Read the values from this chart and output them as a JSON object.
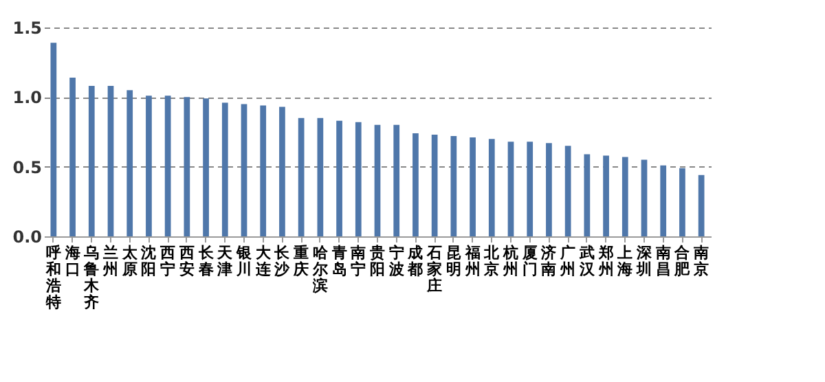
{
  "chart_data": {
    "type": "bar",
    "categories": [
      "呼和浩特",
      "海口",
      "乌鲁木齐",
      "兰州",
      "太原",
      "沈阳",
      "西宁",
      "西安",
      "长春",
      "天津",
      "银川",
      "大连",
      "长沙",
      "重庆",
      "哈尔滨",
      "青岛",
      "南宁",
      "贵阳",
      "宁波",
      "成都",
      "石家庄",
      "昆明",
      "福州",
      "北京",
      "杭州",
      "厦门",
      "济南",
      "广州",
      "武汉",
      "郑州",
      "上海",
      "深圳",
      "南昌",
      "合肥",
      "南京"
    ],
    "values": [
      1.39,
      1.14,
      1.08,
      1.08,
      1.05,
      1.01,
      1.01,
      1.0,
      0.99,
      0.96,
      0.95,
      0.94,
      0.93,
      0.85,
      0.85,
      0.83,
      0.82,
      0.8,
      0.8,
      0.74,
      0.73,
      0.72,
      0.71,
      0.7,
      0.68,
      0.68,
      0.67,
      0.65,
      0.59,
      0.58,
      0.57,
      0.55,
      0.51,
      0.49,
      0.44
    ],
    "color": "#4f77aa",
    "ylim": [
      0,
      1.5
    ],
    "yticks": [
      {
        "value": 0,
        "label": "0.0"
      },
      {
        "value": 0.5,
        "label": "0.5"
      },
      {
        "value": 1,
        "label": "1.0"
      },
      {
        "value": 1.5,
        "label": "1.5"
      }
    ],
    "grid": "y"
  }
}
